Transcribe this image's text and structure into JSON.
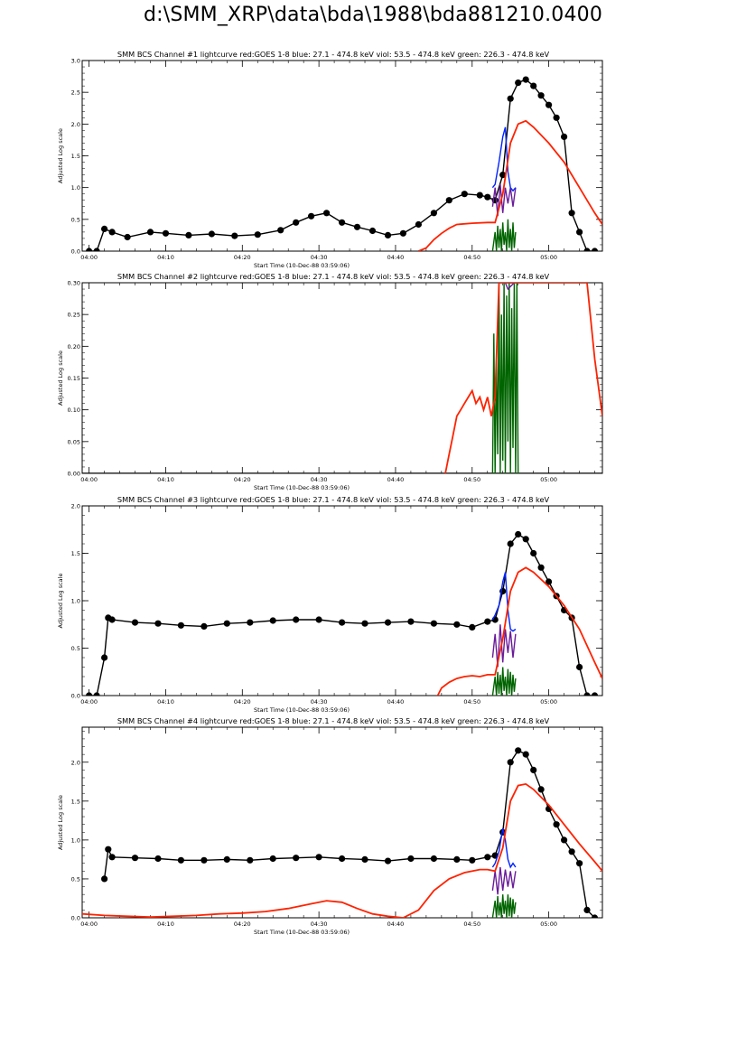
{
  "page_title": "d:\\SMM_XRP\\data\\bda\\1988\\bda881210.0400",
  "colors": {
    "red": "#ff2200",
    "blue": "#0022ff",
    "violet": "#6a1b9a",
    "green": "#006400",
    "black": "#000000"
  },
  "chart_data": [
    {
      "type": "line",
      "title": "SMM BCS Channel #1 lightcurve  red:GOES 1-8  blue: 27.1 - 474.8 keV  viol: 53.5 - 474.8 keV  green: 226.3 - 474.8 keV",
      "xlabel": "Start Time (10-Dec-88 03:59:06)",
      "ylabel": "Adjusted Log scale",
      "xlim": [
        "03:59:06",
        "05:07:00"
      ],
      "x_ticks": [
        "04:00",
        "04:10",
        "04:20",
        "04:30",
        "04:40",
        "04:50",
        "05:00"
      ],
      "ylim": [
        0,
        3.0
      ],
      "y_ticks": [
        "0.0",
        "0.5",
        "1.0",
        "1.5",
        "2.0",
        "2.5",
        "3.0"
      ],
      "series": [
        {
          "color": "black",
          "style": "dots",
          "x": [
            "04:00",
            "04:01",
            "04:02",
            "04:03",
            "04:05",
            "04:08",
            "04:10",
            "04:13",
            "04:16",
            "04:19",
            "04:22",
            "04:25",
            "04:27",
            "04:29",
            "04:31",
            "04:33",
            "04:35",
            "04:37",
            "04:39",
            "04:41",
            "04:43",
            "04:45",
            "04:47",
            "04:49",
            "04:51",
            "04:52",
            "04:53",
            "04:54",
            "04:55",
            "04:56",
            "04:57",
            "04:58",
            "04:59",
            "05:00",
            "05:01",
            "05:02",
            "05:03",
            "05:04",
            "05:05",
            "05:06"
          ],
          "values": [
            0.0,
            0.0,
            0.35,
            0.3,
            0.22,
            0.3,
            0.28,
            0.25,
            0.27,
            0.24,
            0.26,
            0.33,
            0.45,
            0.55,
            0.6,
            0.45,
            0.38,
            0.32,
            0.25,
            0.28,
            0.42,
            0.6,
            0.8,
            0.9,
            0.88,
            0.85,
            0.8,
            1.2,
            2.4,
            2.65,
            2.7,
            2.6,
            2.45,
            2.3,
            2.1,
            1.8,
            0.6,
            0.3,
            0.0,
            0.0
          ]
        },
        {
          "color": "red",
          "style": "line",
          "x": [
            "04:43",
            "04:44",
            "04:45",
            "04:46",
            "04:47",
            "04:48",
            "04:50",
            "04:52",
            "04:53",
            "04:54",
            "04:55",
            "04:56",
            "04:57",
            "04:58",
            "05:00",
            "05:02",
            "05:04",
            "05:06",
            "05:07"
          ],
          "values": [
            0.0,
            0.05,
            0.18,
            0.28,
            0.36,
            0.42,
            0.44,
            0.45,
            0.45,
            0.9,
            1.7,
            2.0,
            2.05,
            1.95,
            1.7,
            1.4,
            1.0,
            0.6,
            0.42
          ]
        },
        {
          "color": "blue",
          "style": "line",
          "x": [
            "04:52:40",
            "04:53",
            "04:53:30",
            "04:54",
            "04:54:20",
            "04:54:40",
            "04:55",
            "04:55:20",
            "04:55:40"
          ],
          "values": [
            1.0,
            1.05,
            1.4,
            1.8,
            1.95,
            1.25,
            1.0,
            0.95,
            1.0
          ]
        },
        {
          "color": "violet",
          "style": "line",
          "x": [
            "04:52:40",
            "04:53",
            "04:53:20",
            "04:53:40",
            "04:54",
            "04:54:20",
            "04:54:40",
            "04:55",
            "04:55:20",
            "04:55:40"
          ],
          "values": [
            0.7,
            1.0,
            0.55,
            1.05,
            0.6,
            1.0,
            0.75,
            1.0,
            0.7,
            1.0
          ]
        },
        {
          "color": "green",
          "style": "line",
          "x": [
            "04:52:40",
            "04:53",
            "04:53:10",
            "04:53:20",
            "04:53:30",
            "04:53:40",
            "04:53:50",
            "04:54",
            "04:54:10",
            "04:54:20",
            "04:54:30",
            "04:54:40",
            "04:54:50",
            "04:55",
            "04:55:10",
            "04:55:20",
            "04:55:30",
            "04:55:40"
          ],
          "values": [
            0.0,
            0.3,
            0.0,
            0.4,
            0.05,
            0.35,
            0.0,
            0.45,
            0.1,
            0.3,
            0.0,
            0.5,
            0.05,
            0.35,
            0.0,
            0.45,
            0.05,
            0.3
          ]
        }
      ]
    },
    {
      "type": "line",
      "title": "SMM BCS Channel #2 lightcurve  red:GOES 1-8  blue: 27.1 - 474.8 keV  viol: 53.5 - 474.8 keV  green: 226.3 - 474.8 keV",
      "xlabel": "Start Time (10-Dec-88 03:59:06)",
      "ylabel": "Adjusted Log scale",
      "xlim": [
        "03:59:06",
        "05:07:00"
      ],
      "x_ticks": [
        "04:00",
        "04:10",
        "04:20",
        "04:30",
        "04:40",
        "04:50",
        "05:00"
      ],
      "ylim": [
        0,
        0.3
      ],
      "y_ticks": [
        "0.00",
        "0.05",
        "0.10",
        "0.15",
        "0.20",
        "0.25",
        "0.30"
      ],
      "series": [
        {
          "color": "black",
          "style": "line",
          "x": [
            "03:59:06",
            "05:07:00"
          ],
          "values": [
            0.0,
            0.0
          ]
        },
        {
          "color": "red",
          "style": "line",
          "x": [
            "04:46:30",
            "04:47",
            "04:47:30",
            "04:48",
            "04:48:30",
            "04:49",
            "04:49:30",
            "04:50",
            "04:50:30",
            "04:51",
            "04:51:30",
            "04:52",
            "04:52:30",
            "04:53",
            "04:53:30",
            "04:54",
            "05:05",
            "05:06",
            "05:07"
          ],
          "values": [
            0.0,
            0.03,
            0.06,
            0.09,
            0.1,
            0.11,
            0.12,
            0.13,
            0.11,
            0.12,
            0.1,
            0.12,
            0.09,
            0.12,
            0.3,
            0.3,
            0.3,
            0.18,
            0.09
          ]
        },
        {
          "color": "blue",
          "style": "line",
          "x": [
            "04:53:30",
            "04:54",
            "04:55:30"
          ],
          "values": [
            0.3,
            0.3,
            0.3
          ]
        },
        {
          "color": "violet",
          "style": "line",
          "x": [
            "04:54:20",
            "04:54:40",
            "04:55:30"
          ],
          "values": [
            0.3,
            0.29,
            0.3
          ]
        },
        {
          "color": "green",
          "style": "line",
          "x": [
            "04:52:40",
            "04:52:50",
            "04:53",
            "04:53:10",
            "04:53:20",
            "04:53:30",
            "04:53:40",
            "04:53:50",
            "04:54",
            "04:54:10",
            "04:54:20",
            "04:54:30",
            "04:54:40",
            "04:54:50",
            "04:55",
            "04:55:10",
            "04:55:20",
            "04:55:30",
            "04:55:40",
            "04:55:50",
            "04:56"
          ],
          "values": [
            0.0,
            0.22,
            0.0,
            0.18,
            0.03,
            0.3,
            0.0,
            0.25,
            0.02,
            0.3,
            0.0,
            0.28,
            0.05,
            0.3,
            0.0,
            0.26,
            0.04,
            0.3,
            0.0,
            0.3,
            0.0
          ]
        }
      ]
    },
    {
      "type": "line",
      "title": "SMM BCS Channel #3 lightcurve  red:GOES 1-8  blue: 27.1 - 474.8 keV  viol: 53.5 - 474.8 keV  green: 226.3 - 474.8 keV",
      "xlabel": "Start Time (10-Dec-88 03:59:06)",
      "ylabel": "Adjusted Log scale",
      "xlim": [
        "03:59:06",
        "05:07:00"
      ],
      "x_ticks": [
        "04:00",
        "04:10",
        "04:20",
        "04:30",
        "04:40",
        "04:50",
        "05:00"
      ],
      "ylim": [
        0,
        2.0
      ],
      "y_ticks": [
        "0.0",
        "0.5",
        "1.0",
        "1.5",
        "2.0"
      ],
      "series": [
        {
          "color": "black",
          "style": "dots",
          "x": [
            "04:00",
            "04:01",
            "04:02",
            "04:02:30",
            "04:03",
            "04:06",
            "04:09",
            "04:12",
            "04:15",
            "04:18",
            "04:21",
            "04:24",
            "04:27",
            "04:30",
            "04:33",
            "04:36",
            "04:39",
            "04:42",
            "04:45",
            "04:48",
            "04:50",
            "04:52",
            "04:53",
            "04:54",
            "04:55",
            "04:56",
            "04:57",
            "04:58",
            "04:59",
            "05:00",
            "05:01",
            "05:02",
            "05:03",
            "05:04",
            "05:05",
            "05:06"
          ],
          "values": [
            0.0,
            0.0,
            0.4,
            0.82,
            0.8,
            0.77,
            0.76,
            0.74,
            0.73,
            0.76,
            0.77,
            0.79,
            0.8,
            0.8,
            0.77,
            0.76,
            0.77,
            0.78,
            0.76,
            0.75,
            0.72,
            0.78,
            0.8,
            1.1,
            1.6,
            1.7,
            1.65,
            1.5,
            1.35,
            1.2,
            1.05,
            0.9,
            0.82,
            0.3,
            0.0,
            0.0
          ]
        },
        {
          "color": "red",
          "style": "line",
          "x": [
            "04:45:30",
            "04:46",
            "04:47",
            "04:48",
            "04:49",
            "04:50",
            "04:51",
            "04:52",
            "04:53",
            "04:54",
            "04:55",
            "04:56",
            "04:57",
            "04:58",
            "05:00",
            "05:02",
            "05:04",
            "05:06",
            "05:07"
          ],
          "values": [
            0.0,
            0.08,
            0.14,
            0.18,
            0.2,
            0.21,
            0.2,
            0.22,
            0.22,
            0.6,
            1.1,
            1.3,
            1.35,
            1.3,
            1.15,
            0.95,
            0.7,
            0.35,
            0.18
          ]
        },
        {
          "color": "blue",
          "style": "line",
          "x": [
            "04:52:40",
            "04:53",
            "04:53:30",
            "04:54",
            "04:54:20",
            "04:54:40",
            "04:55",
            "04:55:20",
            "04:55:40"
          ],
          "values": [
            0.8,
            0.85,
            0.95,
            1.2,
            1.3,
            0.9,
            0.7,
            0.68,
            0.7
          ]
        },
        {
          "color": "violet",
          "style": "line",
          "x": [
            "04:52:40",
            "04:53",
            "04:53:20",
            "04:53:40",
            "04:54",
            "04:54:20",
            "04:54:40",
            "04:55",
            "04:55:20",
            "04:55:40"
          ],
          "values": [
            0.4,
            0.65,
            0.3,
            0.75,
            0.35,
            0.7,
            0.45,
            0.68,
            0.4,
            0.65
          ]
        },
        {
          "color": "green",
          "style": "line",
          "x": [
            "04:52:40",
            "04:53",
            "04:53:10",
            "04:53:20",
            "04:53:30",
            "04:53:40",
            "04:53:50",
            "04:54",
            "04:54:10",
            "04:54:20",
            "04:54:30",
            "04:54:40",
            "04:54:50",
            "04:55",
            "04:55:10",
            "04:55:20",
            "04:55:30",
            "04:55:40"
          ],
          "values": [
            0.0,
            0.2,
            0.0,
            0.25,
            0.02,
            0.22,
            0.0,
            0.3,
            0.05,
            0.2,
            0.0,
            0.28,
            0.02,
            0.25,
            0.0,
            0.22,
            0.04,
            0.18
          ]
        }
      ]
    },
    {
      "type": "line",
      "title": "SMM BCS Channel #4 lightcurve  red:GOES 1-8  blue: 27.1 - 474.8 keV  viol: 53.5 - 474.8 keV  green: 226.3 - 474.8 keV",
      "xlabel": "Start Time (10-Dec-88 03:59:06)",
      "ylabel": "Adjusted Log scale",
      "xlim": [
        "03:59:06",
        "05:07:00"
      ],
      "x_ticks": [
        "04:00",
        "04:10",
        "04:20",
        "04:30",
        "04:40",
        "04:50",
        "05:00"
      ],
      "ylim": [
        0,
        2.45
      ],
      "y_ticks": [
        "0.0",
        "0.5",
        "1.0",
        "1.5",
        "2.0"
      ],
      "series": [
        {
          "color": "black",
          "style": "dots",
          "x": [
            "04:02",
            "04:02:30",
            "04:03",
            "04:06",
            "04:09",
            "04:12",
            "04:15",
            "04:18",
            "04:21",
            "04:24",
            "04:27",
            "04:30",
            "04:33",
            "04:36",
            "04:39",
            "04:42",
            "04:45",
            "04:48",
            "04:50",
            "04:52",
            "04:53",
            "04:54",
            "04:55",
            "04:56",
            "04:57",
            "04:58",
            "04:59",
            "05:00",
            "05:01",
            "05:02",
            "05:03",
            "05:04",
            "05:05",
            "05:06"
          ],
          "values": [
            0.5,
            0.88,
            0.78,
            0.77,
            0.76,
            0.74,
            0.74,
            0.75,
            0.74,
            0.76,
            0.77,
            0.78,
            0.76,
            0.75,
            0.73,
            0.76,
            0.76,
            0.75,
            0.74,
            0.78,
            0.8,
            1.1,
            2.0,
            2.15,
            2.1,
            1.9,
            1.65,
            1.4,
            1.2,
            1.0,
            0.85,
            0.7,
            0.1,
            0.0
          ]
        },
        {
          "color": "red",
          "style": "line",
          "x": [
            "03:59:06",
            "04:02",
            "04:05",
            "04:08",
            "04:11",
            "04:14",
            "04:17",
            "04:20",
            "04:23",
            "04:26",
            "04:29",
            "04:31",
            "04:33",
            "04:35",
            "04:37",
            "04:39",
            "04:41",
            "04:43",
            "04:45",
            "04:47",
            "04:49",
            "04:51",
            "04:52",
            "04:53",
            "04:54",
            "04:55",
            "04:56",
            "04:57",
            "04:58",
            "05:00",
            "05:02",
            "05:04",
            "05:06",
            "05:07"
          ],
          "values": [
            0.05,
            0.03,
            0.02,
            0.01,
            0.02,
            0.03,
            0.05,
            0.06,
            0.08,
            0.12,
            0.18,
            0.22,
            0.2,
            0.12,
            0.05,
            0.02,
            0.0,
            0.1,
            0.35,
            0.5,
            0.58,
            0.62,
            0.62,
            0.6,
            0.9,
            1.5,
            1.7,
            1.72,
            1.65,
            1.45,
            1.2,
            0.95,
            0.72,
            0.6
          ]
        },
        {
          "color": "blue",
          "style": "line",
          "x": [
            "04:52:40",
            "04:53",
            "04:53:30",
            "04:54",
            "04:54:20",
            "04:54:40",
            "04:55",
            "04:55:20",
            "04:55:40"
          ],
          "values": [
            0.65,
            0.7,
            0.85,
            1.15,
            1.0,
            0.75,
            0.65,
            0.7,
            0.65
          ]
        },
        {
          "color": "violet",
          "style": "line",
          "x": [
            "04:52:40",
            "04:53",
            "04:53:20",
            "04:53:40",
            "04:54",
            "04:54:20",
            "04:54:40",
            "04:55",
            "04:55:20",
            "04:55:40"
          ],
          "values": [
            0.35,
            0.6,
            0.3,
            0.65,
            0.35,
            0.62,
            0.4,
            0.6,
            0.38,
            0.6
          ]
        },
        {
          "color": "green",
          "style": "line",
          "x": [
            "04:52:40",
            "04:53",
            "04:53:10",
            "04:53:20",
            "04:53:30",
            "04:53:40",
            "04:53:50",
            "04:54",
            "04:54:10",
            "04:54:20",
            "04:54:30",
            "04:54:40",
            "04:54:50",
            "04:55",
            "04:55:10",
            "04:55:20",
            "04:55:30",
            "04:55:40"
          ],
          "values": [
            0.0,
            0.22,
            0.0,
            0.28,
            0.03,
            0.2,
            0.0,
            0.3,
            0.05,
            0.22,
            0.0,
            0.3,
            0.02,
            0.26,
            0.0,
            0.24,
            0.05,
            0.2
          ]
        }
      ]
    }
  ]
}
